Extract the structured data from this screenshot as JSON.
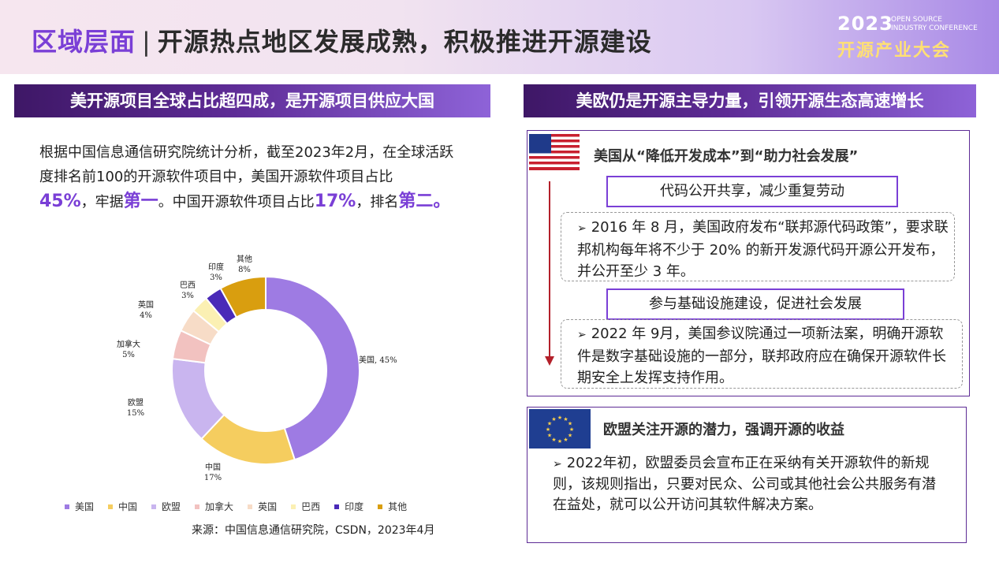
{
  "header": {
    "title_accent": "区域层面",
    "separator": "|",
    "title_main": "开源热点地区发展成熟，积极推进开源建设",
    "logo_year": "2023",
    "logo_en_line1": "OPEN SOURCE",
    "logo_en_line2": "INDUSTRY CONFERENCE",
    "logo_cn": "开源产业大会"
  },
  "left": {
    "header": "美开源项目全球占比超四成，是开源项目供应大国",
    "intro_part1": "根据中国信息通信研究院统计分析，截至2023年2月，在全球活跃度排名前100的开源软件项目中，美国开源软件项目占比",
    "intro_us_pct": "45%",
    "intro_part2": "，牢据",
    "intro_rank1": "第一",
    "intro_part3": "。中国开源软件项目占比",
    "intro_cn_pct": "17%",
    "intro_part4": "，排名",
    "intro_rank2": "第二",
    "intro_end": "。",
    "source": "来源：中国信息通信研究院，CSDN，2023年4月"
  },
  "chart_data": {
    "type": "pie",
    "donut": true,
    "categories": [
      "美国",
      "中国",
      "欧盟",
      "加拿大",
      "英国",
      "巴西",
      "印度",
      "其他"
    ],
    "values": [
      45,
      17,
      15,
      5,
      4,
      3,
      3,
      8
    ],
    "colors": [
      "#9e7be3",
      "#f5cd5f",
      "#c9b5ef",
      "#f2c2c0",
      "#f7dcc7",
      "#fbf0b3",
      "#4a2ab8",
      "#d99e0f"
    ],
    "slice_labels": [
      "美国, 45%",
      "中国|17%",
      "欧盟|15%",
      "加拿大|5%",
      "英国|4%",
      "巴西|3%",
      "印度|3%",
      "其他|8%"
    ],
    "legend_position": "bottom"
  },
  "right": {
    "header": "美欧仍是开源主导力量，引领开源生态高速增长",
    "us_title": "美国从“降低开发成本”到“助力社会发展”",
    "tag1": "代码公开共享，减少重复劳动",
    "bullet1": "2016 年 8 月，美国政府发布“联邦源代码政策”，要求联邦机构每年将不少于 20% 的新开发源代码开源公开发布，并公开至少 3 年。",
    "tag2": "参与基础设施建设，促进社会发展",
    "bullet2": "2022 年 9月，美国参议院通过一项新法案，明确开源软件是数字基础设施的一部分，联邦政府应在确保开源软件长期安全上发挥支持作用。",
    "eu_title": "欧盟关注开源的潜力，强调开源的收益",
    "eu_bullet": "2022年初，欧盟委员会宣布正在采纳有关开源软件的新规则，该规则指出，只要对民众、公司或其他社会公共服务有潜在益处，就可以公开访问其软件解决方案。",
    "bullet_marker": "➢"
  }
}
